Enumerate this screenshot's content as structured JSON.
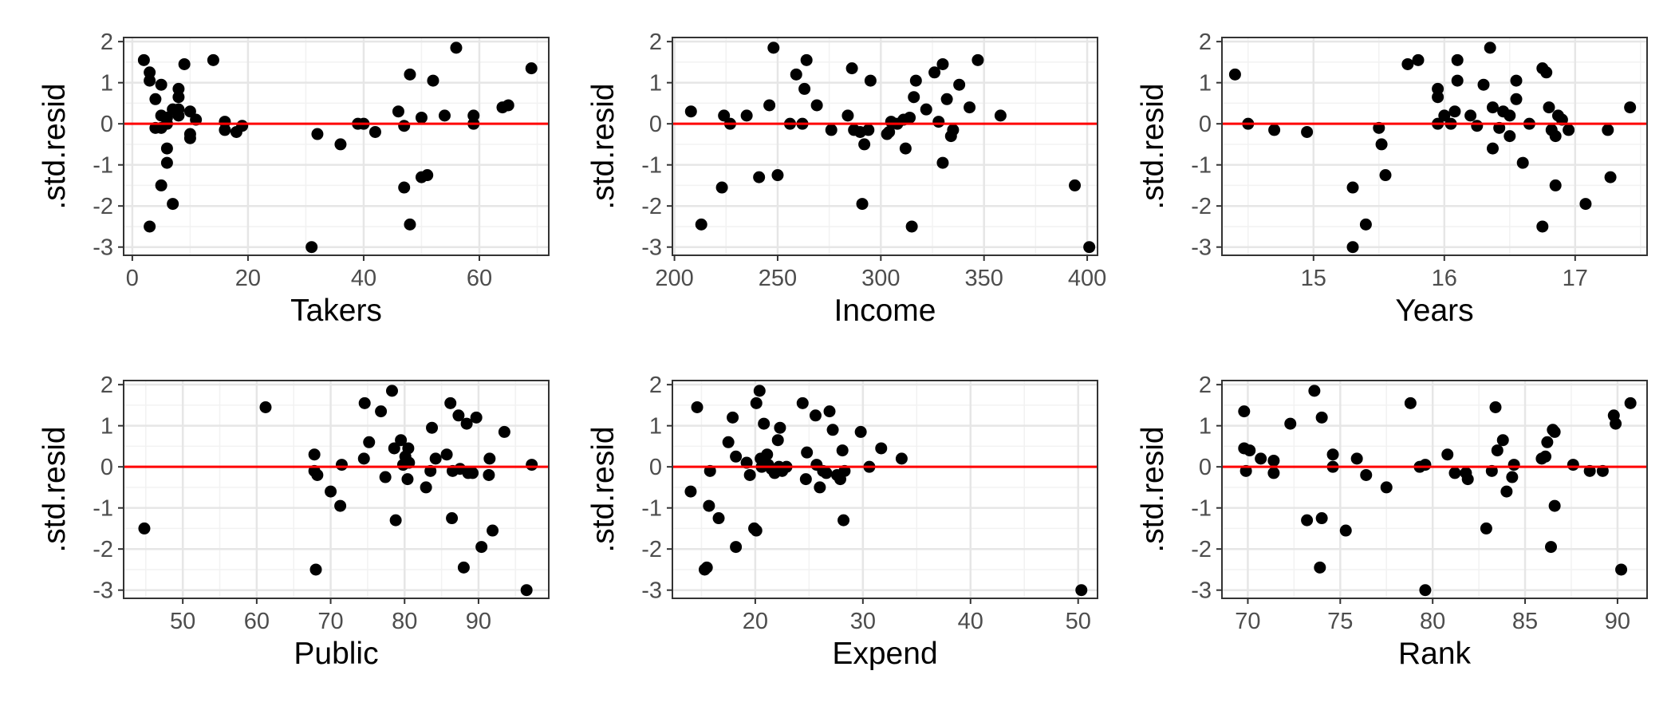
{
  "style": {
    "point_color": "#000000",
    "reference_line_color": "#ff0000",
    "grid_major_color": "#e6e6e6",
    "grid_minor_color": "#f2f2f2",
    "panel_border_color": "#333333",
    "tick_label_color": "#4d4d4d",
    "axis_title_color": "#000000"
  },
  "chart_data": [
    {
      "type": "scatter",
      "xlabel": "Takers",
      "ylabel": ".std.resid",
      "xlim": [
        -1.5,
        72
      ],
      "ylim": [
        -3.2,
        2.1
      ],
      "xticks": [
        0,
        20,
        40,
        60
      ],
      "yticks": [
        -3,
        -2,
        -1,
        0,
        1,
        2
      ],
      "reference_line_y": 0,
      "grid": true,
      "points": [
        [
          2,
          1.55
        ],
        [
          3,
          1.25
        ],
        [
          3,
          1.05
        ],
        [
          3,
          -2.5
        ],
        [
          4,
          0.6
        ],
        [
          4,
          -0.1
        ],
        [
          5,
          0.95
        ],
        [
          5,
          0.2
        ],
        [
          5,
          -0.1
        ],
        [
          5,
          -1.5
        ],
        [
          6,
          -0.6
        ],
        [
          6,
          -0.95
        ],
        [
          6,
          0.15
        ],
        [
          6,
          0.0
        ],
        [
          7,
          -1.95
        ],
        [
          7,
          0.35
        ],
        [
          8,
          0.85
        ],
        [
          8,
          0.65
        ],
        [
          8,
          0.35
        ],
        [
          8,
          0.2
        ],
        [
          9,
          1.45
        ],
        [
          10,
          0.3
        ],
        [
          10,
          -0.25
        ],
        [
          10,
          -0.35
        ],
        [
          11,
          0.1
        ],
        [
          14,
          1.55
        ],
        [
          16,
          0.05
        ],
        [
          16,
          -0.15
        ],
        [
          18,
          -0.2
        ],
        [
          19,
          -0.05
        ],
        [
          31,
          -3.0
        ],
        [
          32,
          -0.25
        ],
        [
          36,
          -0.5
        ],
        [
          39,
          0.0
        ],
        [
          40,
          0.0
        ],
        [
          42,
          -0.2
        ],
        [
          46,
          0.3
        ],
        [
          47,
          -0.05
        ],
        [
          47,
          -1.55
        ],
        [
          48,
          -2.45
        ],
        [
          48,
          1.2
        ],
        [
          50,
          0.15
        ],
        [
          50,
          -1.3
        ],
        [
          51,
          -1.25
        ],
        [
          52,
          1.05
        ],
        [
          54,
          0.2
        ],
        [
          56,
          1.85
        ],
        [
          59,
          0.0
        ],
        [
          59,
          0.2
        ],
        [
          64,
          0.4
        ],
        [
          65,
          0.45
        ],
        [
          69,
          1.35
        ]
      ]
    },
    {
      "type": "scatter",
      "xlabel": "Income",
      "ylabel": ".std.resid",
      "xlim": [
        199,
        405
      ],
      "ylim": [
        -3.2,
        2.1
      ],
      "xticks": [
        200,
        250,
        300,
        350,
        400
      ],
      "yticks": [
        -3,
        -2,
        -1,
        0,
        1,
        2
      ],
      "reference_line_y": 0,
      "grid": true,
      "points": [
        [
          208,
          0.3
        ],
        [
          213,
          -2.45
        ],
        [
          223,
          -1.55
        ],
        [
          224,
          0.2
        ],
        [
          227,
          0.0
        ],
        [
          235,
          0.2
        ],
        [
          241,
          -1.3
        ],
        [
          246,
          0.45
        ],
        [
          248,
          1.85
        ],
        [
          250,
          -1.25
        ],
        [
          256,
          0.0
        ],
        [
          259,
          1.2
        ],
        [
          262,
          0.0
        ],
        [
          263,
          0.85
        ],
        [
          264,
          1.55
        ],
        [
          269,
          0.45
        ],
        [
          276,
          -0.15
        ],
        [
          284,
          0.2
        ],
        [
          286,
          1.35
        ],
        [
          287,
          -0.15
        ],
        [
          290,
          -0.2
        ],
        [
          291,
          -1.95
        ],
        [
          292,
          -0.5
        ],
        [
          294,
          -0.15
        ],
        [
          295,
          1.05
        ],
        [
          303,
          -0.25
        ],
        [
          304,
          -0.2
        ],
        [
          305,
          0.05
        ],
        [
          308,
          0.0
        ],
        [
          311,
          0.1
        ],
        [
          312,
          -0.6
        ],
        [
          314,
          0.15
        ],
        [
          315,
          -2.5
        ],
        [
          316,
          0.65
        ],
        [
          317,
          1.05
        ],
        [
          322,
          0.35
        ],
        [
          326,
          1.25
        ],
        [
          328,
          0.05
        ],
        [
          330,
          1.45
        ],
        [
          330,
          -0.95
        ],
        [
          332,
          0.6
        ],
        [
          334,
          -0.3
        ],
        [
          335,
          -0.15
        ],
        [
          338,
          0.95
        ],
        [
          343,
          0.4
        ],
        [
          347,
          1.55
        ],
        [
          358,
          0.2
        ],
        [
          394,
          -1.5
        ],
        [
          401,
          -3.0
        ]
      ]
    },
    {
      "type": "scatter",
      "xlabel": "Years",
      "ylabel": ".std.resid",
      "xlim": [
        14.3,
        17.55
      ],
      "ylim": [
        -3.2,
        2.1
      ],
      "xticks": [
        15,
        16,
        17
      ],
      "yticks": [
        -3,
        -2,
        -1,
        0,
        1,
        2
      ],
      "reference_line_y": 0,
      "grid": true,
      "points": [
        [
          14.4,
          1.2
        ],
        [
          14.5,
          0.0
        ],
        [
          14.7,
          -0.15
        ],
        [
          14.95,
          -0.2
        ],
        [
          15.3,
          -3.0
        ],
        [
          15.3,
          -1.55
        ],
        [
          15.4,
          -2.45
        ],
        [
          15.5,
          -0.1
        ],
        [
          15.52,
          -0.5
        ],
        [
          15.55,
          -1.25
        ],
        [
          15.72,
          1.45
        ],
        [
          15.8,
          1.55
        ],
        [
          15.95,
          0.85
        ],
        [
          15.95,
          0.65
        ],
        [
          15.95,
          0.0
        ],
        [
          16.0,
          0.2
        ],
        [
          16.05,
          0.0
        ],
        [
          16.08,
          0.3
        ],
        [
          16.1,
          1.55
        ],
        [
          16.1,
          1.05
        ],
        [
          16.2,
          0.2
        ],
        [
          16.25,
          -0.05
        ],
        [
          16.3,
          0.95
        ],
        [
          16.35,
          1.85
        ],
        [
          16.37,
          0.4
        ],
        [
          16.37,
          -0.6
        ],
        [
          16.42,
          -0.1
        ],
        [
          16.45,
          0.3
        ],
        [
          16.5,
          0.2
        ],
        [
          16.5,
          -0.3
        ],
        [
          16.55,
          1.05
        ],
        [
          16.55,
          0.6
        ],
        [
          16.6,
          -0.95
        ],
        [
          16.65,
          0.0
        ],
        [
          16.75,
          1.35
        ],
        [
          16.75,
          -2.5
        ],
        [
          16.78,
          1.25
        ],
        [
          16.8,
          0.4
        ],
        [
          16.82,
          -0.15
        ],
        [
          16.85,
          -1.5
        ],
        [
          16.85,
          -0.3
        ],
        [
          16.87,
          0.2
        ],
        [
          16.9,
          0.1
        ],
        [
          16.95,
          -0.15
        ],
        [
          17.08,
          -1.95
        ],
        [
          17.25,
          -0.15
        ],
        [
          17.27,
          -1.3
        ],
        [
          17.42,
          0.4
        ]
      ]
    },
    {
      "type": "scatter",
      "xlabel": "Public",
      "ylabel": ".std.resid",
      "xlim": [
        42,
        99.5
      ],
      "ylim": [
        -3.2,
        2.1
      ],
      "xticks": [
        50,
        60,
        70,
        80,
        90
      ],
      "yticks": [
        -3,
        -2,
        -1,
        0,
        1,
        2
      ],
      "reference_line_y": 0,
      "grid": true,
      "points": [
        [
          44.8,
          -1.5
        ],
        [
          61.2,
          1.45
        ],
        [
          67.8,
          0.3
        ],
        [
          67.8,
          -0.1
        ],
        [
          68,
          -2.5
        ],
        [
          68.2,
          -0.2
        ],
        [
          70,
          -0.6
        ],
        [
          71.3,
          -0.95
        ],
        [
          71.5,
          0.05
        ],
        [
          74.5,
          0.2
        ],
        [
          74.6,
          1.55
        ],
        [
          75.2,
          0.6
        ],
        [
          76.8,
          1.35
        ],
        [
          77.4,
          -0.25
        ],
        [
          78.3,
          1.85
        ],
        [
          78.6,
          0.45
        ],
        [
          78.8,
          -1.3
        ],
        [
          79.5,
          0.65
        ],
        [
          79.8,
          0.05
        ],
        [
          80.1,
          0.25
        ],
        [
          80.4,
          -0.3
        ],
        [
          80.5,
          0.45
        ],
        [
          80.6,
          0.1
        ],
        [
          82.9,
          -0.5
        ],
        [
          83.5,
          -0.1
        ],
        [
          83.7,
          0.95
        ],
        [
          84.2,
          0.2
        ],
        [
          85.7,
          0.3
        ],
        [
          86.2,
          1.55
        ],
        [
          86.4,
          -1.25
        ],
        [
          86.5,
          -0.1
        ],
        [
          87.3,
          1.25
        ],
        [
          87.5,
          -0.05
        ],
        [
          88,
          -2.45
        ],
        [
          88.4,
          1.05
        ],
        [
          88.6,
          -0.15
        ],
        [
          89.2,
          -0.15
        ],
        [
          89.7,
          1.2
        ],
        [
          90.4,
          -1.95
        ],
        [
          91.4,
          -0.2
        ],
        [
          91.5,
          0.2
        ],
        [
          91.9,
          -1.55
        ],
        [
          93.5,
          0.85
        ],
        [
          96.5,
          -3.0
        ],
        [
          97.2,
          0.05
        ]
      ]
    },
    {
      "type": "scatter",
      "xlabel": "Expend",
      "ylabel": ".std.resid",
      "xlim": [
        12.3,
        51.8
      ],
      "ylim": [
        -3.2,
        2.1
      ],
      "xticks": [
        20,
        30,
        40,
        50
      ],
      "yticks": [
        -3,
        -2,
        -1,
        0,
        1,
        2
      ],
      "reference_line_y": 0,
      "grid": true,
      "points": [
        [
          14,
          -0.6
        ],
        [
          14.6,
          1.45
        ],
        [
          15.3,
          -2.5
        ],
        [
          15.5,
          -2.45
        ],
        [
          15.7,
          -0.95
        ],
        [
          15.8,
          -0.1
        ],
        [
          16.6,
          -1.25
        ],
        [
          17.5,
          0.6
        ],
        [
          17.9,
          1.2
        ],
        [
          18.2,
          0.25
        ],
        [
          18.2,
          -1.95
        ],
        [
          19.2,
          0.1
        ],
        [
          19.5,
          -0.2
        ],
        [
          19.9,
          -1.5
        ],
        [
          20.1,
          -1.55
        ],
        [
          20.1,
          1.55
        ],
        [
          20.4,
          1.85
        ],
        [
          20.5,
          0.2
        ],
        [
          20.6,
          0.0
        ],
        [
          20.8,
          1.05
        ],
        [
          21.1,
          0.3
        ],
        [
          21.2,
          0.05
        ],
        [
          21.5,
          -0.05
        ],
        [
          21.8,
          -0.15
        ],
        [
          22.1,
          0.65
        ],
        [
          22.2,
          0.0
        ],
        [
          22.3,
          0.95
        ],
        [
          22.5,
          -0.1
        ],
        [
          22.9,
          0.0
        ],
        [
          24.4,
          1.55
        ],
        [
          24.7,
          -0.3
        ],
        [
          24.8,
          0.35
        ],
        [
          25.6,
          1.25
        ],
        [
          25.7,
          0.05
        ],
        [
          26,
          -0.5
        ],
        [
          26.3,
          -0.1
        ],
        [
          26.6,
          -0.15
        ],
        [
          26.9,
          1.35
        ],
        [
          27.2,
          0.9
        ],
        [
          27.6,
          -0.2
        ],
        [
          27.9,
          -0.3
        ],
        [
          28.1,
          0.4
        ],
        [
          28.2,
          -1.3
        ],
        [
          28.3,
          -0.1
        ],
        [
          29.8,
          0.85
        ],
        [
          30.6,
          0.0
        ],
        [
          31.7,
          0.45
        ],
        [
          33.6,
          0.2
        ],
        [
          50.3,
          -3.0
        ]
      ]
    },
    {
      "type": "scatter",
      "xlabel": "Rank",
      "ylabel": ".std.resid",
      "xlim": [
        68.6,
        91.6
      ],
      "ylim": [
        -3.2,
        2.1
      ],
      "xticks": [
        70,
        75,
        80,
        85,
        90
      ],
      "yticks": [
        -3,
        -2,
        -1,
        0,
        1,
        2
      ],
      "reference_line_y": 0,
      "grid": true,
      "points": [
        [
          69.8,
          1.35
        ],
        [
          69.8,
          0.45
        ],
        [
          69.9,
          -0.1
        ],
        [
          70.1,
          0.4
        ],
        [
          70.7,
          0.2
        ],
        [
          71.4,
          -0.15
        ],
        [
          71.4,
          0.15
        ],
        [
          72.3,
          1.05
        ],
        [
          73.2,
          -1.3
        ],
        [
          73.6,
          1.85
        ],
        [
          73.9,
          -2.45
        ],
        [
          74,
          -1.25
        ],
        [
          74,
          1.2
        ],
        [
          74.6,
          0.3
        ],
        [
          74.6,
          0.0
        ],
        [
          75.3,
          -1.55
        ],
        [
          75.9,
          0.2
        ],
        [
          76.4,
          -0.2
        ],
        [
          77.5,
          -0.5
        ],
        [
          78.8,
          1.55
        ],
        [
          79.3,
          0.0
        ],
        [
          79.6,
          0.05
        ],
        [
          79.6,
          -3.0
        ],
        [
          80.8,
          0.3
        ],
        [
          81.2,
          -0.15
        ],
        [
          81.8,
          -0.15
        ],
        [
          81.9,
          -0.3
        ],
        [
          82.9,
          -1.5
        ],
        [
          83.2,
          -0.1
        ],
        [
          83.4,
          1.45
        ],
        [
          83.5,
          0.4
        ],
        [
          83.8,
          0.65
        ],
        [
          84.0,
          -0.6
        ],
        [
          84.3,
          -0.25
        ],
        [
          84.4,
          0.05
        ],
        [
          85.9,
          0.2
        ],
        [
          86.1,
          0.25
        ],
        [
          86.2,
          0.6
        ],
        [
          86.4,
          -1.95
        ],
        [
          86.5,
          0.9
        ],
        [
          86.6,
          -0.95
        ],
        [
          86.6,
          0.85
        ],
        [
          87.6,
          0.05
        ],
        [
          88.5,
          -0.1
        ],
        [
          89.2,
          -0.1
        ],
        [
          89.8,
          1.25
        ],
        [
          89.9,
          1.05
        ],
        [
          90.2,
          -2.5
        ],
        [
          90.7,
          1.55
        ]
      ]
    }
  ]
}
